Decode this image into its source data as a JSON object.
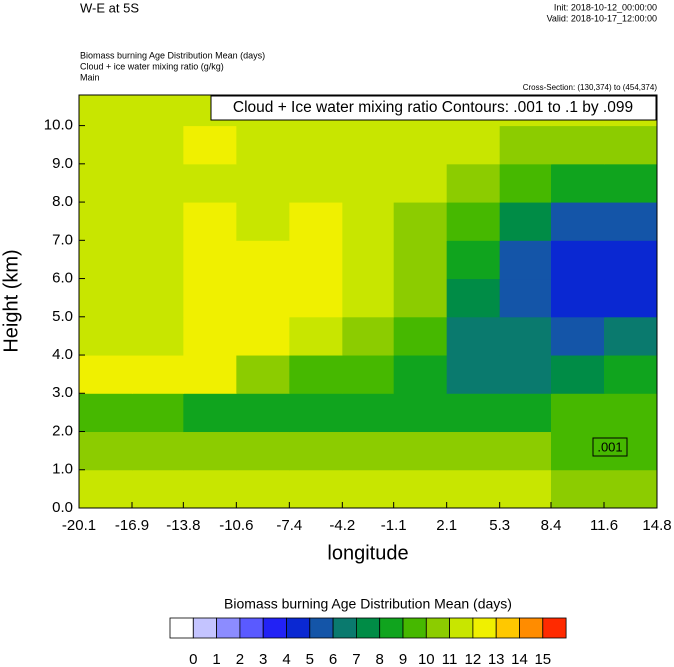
{
  "chart_data": {
    "type": "contour",
    "title": "W-E at 5S",
    "init": "Init: 2018-10-12_00:00:00",
    "valid": "Valid: 2018-10-17_12:00:00",
    "field_title": "Biomass burning Age Distribution Mean   (days)",
    "contour_field_title": "Cloud + ice water mixing ratio   (g/kg)",
    "domain": "Main",
    "cross_section": "Cross-Section: (130,374) to (454,374)",
    "contour_title": "Cloud + Ice water mixing ratio Contours: .001 to .1 by .099",
    "contour_label": ".001",
    "x_label": "longitude",
    "y_label": "Height (km)",
    "xlim": [
      -20.1,
      14.8
    ],
    "xticks": [
      -20.1,
      -16.9,
      -13.8,
      -10.6,
      -7.4,
      -4.2,
      -1.1,
      2.1,
      5.3,
      8.4,
      11.6,
      14.8
    ],
    "ylim": [
      0,
      10.8
    ],
    "yticks": [
      {
        "value": 0,
        "label": "0.0"
      },
      {
        "value": 1,
        "label": "1.0"
      },
      {
        "value": 2,
        "label": "2.0"
      },
      {
        "value": 3,
        "label": "3.0"
      },
      {
        "value": 4,
        "label": "4.0"
      },
      {
        "value": 5,
        "label": "5.0"
      },
      {
        "value": 6,
        "label": "6.0"
      },
      {
        "value": 7,
        "label": "7.0"
      },
      {
        "value": 8,
        "label": "8.0"
      },
      {
        "value": 9,
        "label": "9.0"
      },
      {
        "value": 10,
        "label": "10.0"
      }
    ],
    "z": [
      [
        11,
        11,
        11,
        11,
        11,
        11,
        11,
        11,
        11,
        10.5,
        10
      ],
      [
        10,
        10,
        10,
        10,
        10,
        10,
        10,
        10,
        10,
        9.5,
        9
      ],
      [
        9.5,
        9,
        8.5,
        8,
        8,
        8,
        8.5,
        8.5,
        8,
        9,
        9
      ],
      [
        12,
        12,
        12,
        10,
        9,
        9,
        8,
        6.5,
        6,
        7,
        8
      ],
      [
        11,
        11,
        12,
        12,
        11,
        10,
        9,
        6,
        6,
        5,
        6
      ],
      [
        11,
        11,
        12,
        12,
        12,
        11,
        10,
        7,
        5,
        4,
        4
      ],
      [
        11,
        11,
        12,
        12,
        12,
        11,
        10,
        8,
        5,
        4,
        4
      ],
      [
        11,
        11,
        12,
        11,
        12,
        11,
        10,
        9,
        7,
        5,
        5
      ],
      [
        11,
        11,
        11,
        11,
        11,
        11,
        11,
        10,
        9,
        8,
        8
      ],
      [
        11,
        11,
        12,
        11,
        11,
        11,
        11,
        11,
        10,
        10,
        10
      ],
      [
        11,
        11,
        11,
        11,
        11,
        11,
        11,
        11,
        11,
        11,
        11
      ]
    ],
    "colorbar_title": "Biomass burning Age Distribution Mean  (days)",
    "levels": [
      0,
      1,
      2,
      3,
      4,
      5,
      6,
      7,
      8,
      9,
      10,
      11,
      12,
      13,
      14,
      15
    ],
    "colors": [
      "#ffffff",
      "#c4c4ff",
      "#8c8cff",
      "#5a5aff",
      "#2222f5",
      "#0a28d2",
      "#1455a8",
      "#0a7a6e",
      "#008c46",
      "#10a41e",
      "#46b800",
      "#8ccc00",
      "#c8e600",
      "#f0f000",
      "#ffc800",
      "#ff8c00",
      "#ff2a00"
    ]
  }
}
